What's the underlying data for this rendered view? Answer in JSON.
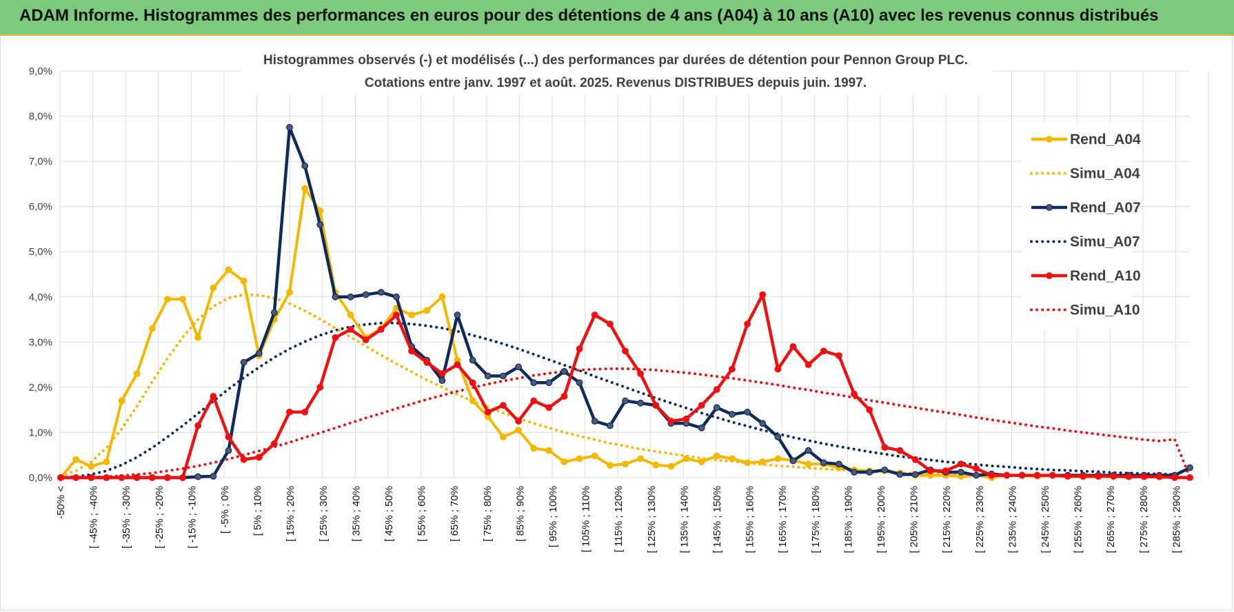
{
  "header": {
    "title": "ADAM Informe. Histogrammes des performances en euros pour des détentions de 4 ans (A04) à 10 ans (A10) avec les revenus connus distribués"
  },
  "chart_data": {
    "type": "line",
    "title_lines": [
      "Histogrammes observés (-) et modélisés (...) des performances par durées de détention pour Pennon Group PLC.",
      "Cotations entre janv. 1997 et août. 2025. Revenus DISTRIBUES depuis juin. 1997."
    ],
    "ylim": [
      0,
      9
    ],
    "y_ticks": [
      "0,0%",
      "1,0%",
      "2,0%",
      "3,0%",
      "4,0%",
      "5,0%",
      "6,0%",
      "7,0%",
      "8,0%",
      "9,0%"
    ],
    "grid": true,
    "legend_position": "right",
    "x_tick_labels": [
      "-50% <",
      "[ -45% ; -40%",
      "[ -35% ; -30%",
      "[ -25% ; -20%",
      "[ -15% ; -10%",
      "[ -5% ; 0%",
      "[ 5% ; 10%",
      "[ 15% ; 20%",
      "[ 25% ; 30%",
      "[ 35% ; 40%",
      "[ 45% ; 50%",
      "[ 55% ; 60%",
      "[ 65% ; 70%",
      "[ 75% ; 80%",
      "[ 85% ; 90%",
      "[ 95% ; 100%",
      "[ 105% ; 110%",
      "[ 115% ; 120%",
      "[ 125% ; 130%",
      "[ 135% ; 140%",
      "[ 145% ; 150%",
      "[ 155% ; 160%",
      "[ 165% ; 170%",
      "[ 175% ; 180%",
      "[ 185% ; 190%",
      "[ 195% ; 200%",
      "[ 205% ; 210%",
      "[ 215% ; 220%",
      "[ 225% ; 230%",
      "[ 235% ; 240%",
      "[ 245% ; 250%",
      "[ 255% ; 260%",
      "[ 265% ; 270%",
      "[ 275% ; 280%",
      "[ 285% ; 290%"
    ],
    "series": [
      {
        "name": "Rend_A04",
        "style": "solid",
        "color": "#f5b800",
        "values": [
          0.0,
          0.4,
          0.25,
          0.35,
          1.7,
          2.3,
          3.3,
          3.95,
          3.95,
          3.1,
          4.2,
          4.6,
          4.35,
          2.7,
          3.5,
          4.1,
          6.4,
          5.9,
          4.1,
          3.6,
          3.1,
          3.3,
          3.75,
          3.6,
          3.7,
          4.0,
          2.6,
          1.7,
          1.35,
          0.9,
          1.05,
          0.65,
          0.6,
          0.35,
          0.42,
          0.48,
          0.27,
          0.3,
          0.42,
          0.28,
          0.25,
          0.42,
          0.35,
          0.48,
          0.42,
          0.33,
          0.35,
          0.42,
          0.38,
          0.3,
          0.3,
          0.22,
          0.17,
          0.15,
          0.15,
          0.1,
          0.05,
          0.05,
          0.05,
          0.03,
          0.05,
          0.0,
          0.05,
          0.05,
          0.03,
          0.05,
          0.03,
          0.02,
          0.02,
          0.02,
          0.02,
          0.02,
          0.02,
          0.02,
          0.0
        ]
      },
      {
        "name": "Simu_A04",
        "style": "dotted",
        "color": "#f5b800",
        "values": [
          0.04,
          0.15,
          0.35,
          0.66,
          1.08,
          1.58,
          2.12,
          2.64,
          3.11,
          3.5,
          3.79,
          3.97,
          4.05,
          4.04,
          3.97,
          3.85,
          3.69,
          3.51,
          3.31,
          3.11,
          2.91,
          2.71,
          2.52,
          2.34,
          2.16,
          2.0,
          1.84,
          1.69,
          1.56,
          1.43,
          1.31,
          1.2,
          1.1,
          1.0,
          0.92,
          0.84,
          0.76,
          0.7,
          0.63,
          0.58,
          0.53,
          0.48,
          0.43,
          0.39,
          0.36,
          0.32,
          0.29,
          0.26,
          0.24,
          0.21,
          0.19,
          0.17,
          0.16,
          0.14,
          0.13,
          0.11,
          0.1,
          0.09,
          0.08,
          0.07,
          0.07,
          0.06,
          0.05,
          0.05,
          0.04,
          0.04,
          0.03,
          0.03,
          0.03,
          0.02,
          0.02,
          0.02,
          0.02,
          0.02,
          0.0
        ]
      },
      {
        "name": "Rend_A07",
        "style": "solid",
        "color": "#0f2a5c",
        "values": [
          0.0,
          0.0,
          0.0,
          0.0,
          0.0,
          0.0,
          0.0,
          0.0,
          0.0,
          0.02,
          0.03,
          0.6,
          2.55,
          2.75,
          3.65,
          7.75,
          6.9,
          5.6,
          4.0,
          4.0,
          4.05,
          4.1,
          4.0,
          2.9,
          2.6,
          2.15,
          3.6,
          2.6,
          2.25,
          2.25,
          2.45,
          2.1,
          2.1,
          2.35,
          2.1,
          1.25,
          1.15,
          1.7,
          1.65,
          1.6,
          1.2,
          1.2,
          1.1,
          1.55,
          1.4,
          1.45,
          1.2,
          0.9,
          0.37,
          0.6,
          0.33,
          0.3,
          0.12,
          0.12,
          0.17,
          0.07,
          0.07,
          0.17,
          0.12,
          0.12,
          0.05,
          0.08,
          0.05,
          0.05,
          0.05,
          0.05,
          0.05,
          0.05,
          0.05,
          0.05,
          0.05,
          0.05,
          0.05,
          0.05,
          0.22
        ]
      },
      {
        "name": "Simu_A07",
        "style": "dotted",
        "color": "#0f2a5c",
        "values": [
          0.0,
          0.02,
          0.07,
          0.15,
          0.28,
          0.45,
          0.66,
          0.9,
          1.15,
          1.42,
          1.69,
          1.96,
          2.21,
          2.44,
          2.66,
          2.85,
          3.01,
          3.15,
          3.26,
          3.34,
          3.39,
          3.42,
          3.42,
          3.4,
          3.36,
          3.31,
          3.24,
          3.15,
          3.06,
          2.96,
          2.85,
          2.73,
          2.61,
          2.49,
          2.37,
          2.24,
          2.12,
          2.0,
          1.88,
          1.76,
          1.65,
          1.54,
          1.43,
          1.33,
          1.23,
          1.14,
          1.05,
          0.97,
          0.89,
          0.82,
          0.75,
          0.69,
          0.63,
          0.57,
          0.52,
          0.47,
          0.43,
          0.39,
          0.35,
          0.32,
          0.29,
          0.26,
          0.24,
          0.21,
          0.19,
          0.17,
          0.16,
          0.14,
          0.13,
          0.11,
          0.1,
          0.09,
          0.08,
          0.07,
          0.22
        ]
      },
      {
        "name": "Rend_A10",
        "style": "solid",
        "color": "#ee1111",
        "values": [
          0.0,
          0.0,
          0.0,
          0.0,
          0.0,
          0.0,
          0.0,
          0.0,
          0.0,
          1.15,
          1.8,
          0.9,
          0.4,
          0.45,
          0.75,
          1.45,
          1.45,
          2.0,
          3.1,
          3.28,
          3.05,
          3.28,
          3.6,
          2.8,
          2.55,
          2.3,
          2.5,
          2.1,
          1.45,
          1.6,
          1.25,
          1.7,
          1.55,
          1.8,
          2.85,
          3.6,
          3.4,
          2.8,
          2.3,
          1.6,
          1.25,
          1.3,
          1.6,
          1.95,
          2.4,
          3.4,
          4.05,
          2.4,
          2.9,
          2.5,
          2.8,
          2.7,
          1.85,
          1.5,
          0.67,
          0.6,
          0.4,
          0.15,
          0.15,
          0.3,
          0.2,
          0.05,
          0.05,
          0.05,
          0.05,
          0.05,
          0.03,
          0.03,
          0.03,
          0.03,
          0.02,
          0.02,
          0.02,
          0.0,
          0.0
        ]
      },
      {
        "name": "Simu_A10",
        "style": "dotted",
        "color": "#ee1111",
        "values": [
          0.0,
          0.0,
          0.01,
          0.02,
          0.04,
          0.07,
          0.1,
          0.15,
          0.2,
          0.26,
          0.33,
          0.41,
          0.5,
          0.59,
          0.68,
          0.78,
          0.89,
          0.99,
          1.1,
          1.21,
          1.32,
          1.42,
          1.53,
          1.63,
          1.73,
          1.82,
          1.91,
          1.99,
          2.07,
          2.14,
          2.2,
          2.26,
          2.31,
          2.35,
          2.38,
          2.4,
          2.41,
          2.41,
          2.4,
          2.38,
          2.35,
          2.32,
          2.28,
          2.24,
          2.2,
          2.15,
          2.1,
          2.05,
          1.99,
          1.94,
          1.88,
          1.83,
          1.77,
          1.71,
          1.66,
          1.6,
          1.55,
          1.49,
          1.44,
          1.39,
          1.33,
          1.28,
          1.23,
          1.18,
          1.13,
          1.09,
          1.04,
          1.0,
          0.96,
          0.92,
          0.88,
          0.84,
          0.81,
          0.85,
          0.0
        ]
      }
    ]
  }
}
